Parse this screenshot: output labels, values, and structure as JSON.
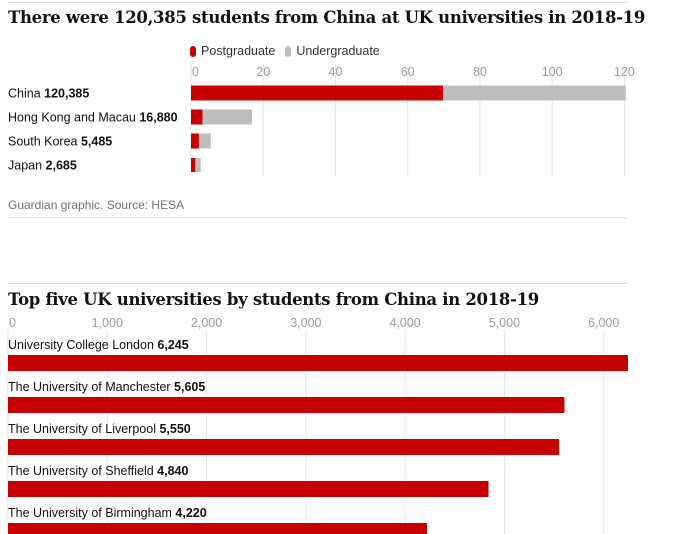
{
  "chart_data": [
    {
      "type": "bar",
      "stacked": true,
      "orientation": "horizontal",
      "title": "There were 120,385 students from China at UK universities in 2018-19",
      "legend_position": "top",
      "categories": [
        "China",
        "Hong Kong and Macau",
        "South Korea",
        "Japan"
      ],
      "totals_label": [
        "120,385",
        "16,880",
        "5,485",
        "2,685"
      ],
      "series": [
        {
          "name": "Postgraduate",
          "color": "#c70000",
          "values": [
            69.8,
            3.2,
            2.2,
            1.2
          ]
        },
        {
          "name": "Undergraduate",
          "color": "#bdbdbd",
          "values": [
            50.6,
            13.7,
            3.3,
            1.5
          ]
        }
      ],
      "xticks": [
        "0",
        "20",
        "40",
        "60",
        "80",
        "100",
        "120"
      ],
      "xtick_values": [
        0,
        20,
        40,
        60,
        80,
        100,
        120
      ],
      "xlim": [
        0,
        121
      ],
      "grid": true
    },
    {
      "type": "bar",
      "orientation": "horizontal",
      "title": "Top five UK universities by students from China in 2018-19",
      "categories": [
        "University College London",
        "The University of Manchester",
        "The University of Liverpool",
        "The University of Sheffield",
        "The University of Birmingham"
      ],
      "values": [
        6245,
        5605,
        5550,
        4840,
        4220
      ],
      "value_labels": [
        "6,245",
        "5,605",
        "5,550",
        "4,840",
        "4,220"
      ],
      "color": "#c70000",
      "xticks": [
        "0",
        "1,000",
        "2,000",
        "3,000",
        "4,000",
        "5,000",
        "6,000"
      ],
      "xtick_values": [
        0,
        1000,
        2000,
        3000,
        4000,
        5000,
        6000
      ],
      "xlim": [
        0,
        6245
      ],
      "grid": true
    }
  ],
  "source": "Guardian graphic. Source: HESA"
}
